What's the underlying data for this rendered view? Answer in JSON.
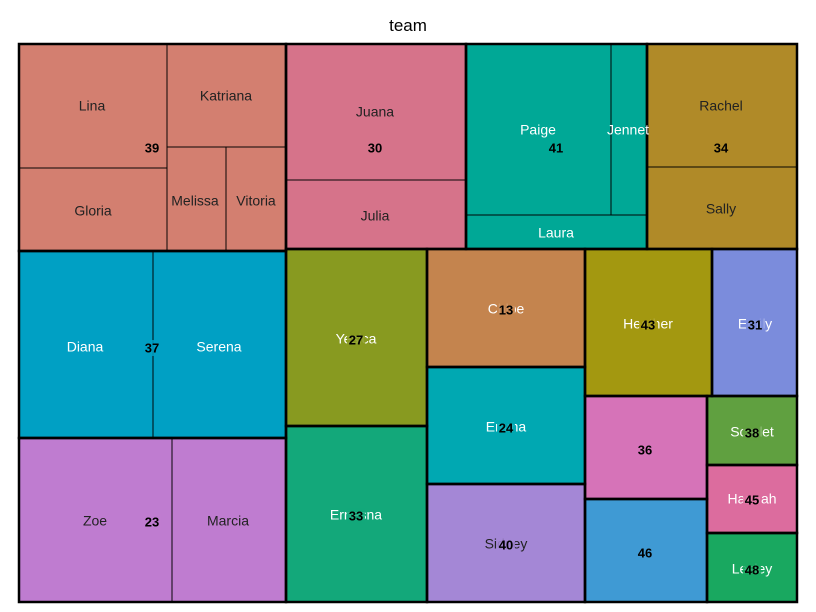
{
  "chart_data": {
    "type": "treemap",
    "title": "team",
    "groups": [
      {
        "label": "39",
        "color": "#D37F70",
        "members": [
          {
            "name": "Lina"
          },
          {
            "name": "Katriana"
          },
          {
            "name": "Gloria"
          },
          {
            "name": "Melissa"
          },
          {
            "name": "Vitoria"
          }
        ]
      },
      {
        "label": "30",
        "color": "#D6738A",
        "members": [
          {
            "name": "Juana"
          },
          {
            "name": "Julia"
          }
        ]
      },
      {
        "label": "41",
        "color": "#00A896",
        "members": [
          {
            "name": "Paige"
          },
          {
            "name": "Jennet"
          },
          {
            "name": "Laura"
          }
        ]
      },
      {
        "label": "34",
        "color": "#B08A28",
        "members": [
          {
            "name": "Rachel"
          },
          {
            "name": "Sally"
          }
        ]
      },
      {
        "label": "37",
        "color": "#00A0C4",
        "members": [
          {
            "name": "Diana"
          },
          {
            "name": "Serena"
          }
        ]
      },
      {
        "label": "27",
        "color": "#889A20",
        "members": [
          {
            "name": "Yesica"
          }
        ]
      },
      {
        "label": "13",
        "color": "#C4844E",
        "members": [
          {
            "name": "Chloe"
          }
        ]
      },
      {
        "label": "43",
        "color": "#A39810",
        "members": [
          {
            "name": "Heather"
          }
        ]
      },
      {
        "label": "31",
        "color": "#7B8CDC",
        "members": [
          {
            "name": "Emily"
          }
        ]
      },
      {
        "label": "24",
        "color": "#00A8B2",
        "members": [
          {
            "name": "Emma"
          }
        ]
      },
      {
        "label": "36",
        "color": "#D673B8",
        "members": []
      },
      {
        "label": "38",
        "color": "#60A040",
        "members": [
          {
            "name": "Scarlet"
          }
        ]
      },
      {
        "label": "23",
        "color": "#BF7CD0",
        "members": [
          {
            "name": "Zoe"
          },
          {
            "name": "Marcia"
          }
        ]
      },
      {
        "label": "33",
        "color": "#13A87A",
        "members": [
          {
            "name": "Ernesna"
          }
        ]
      },
      {
        "label": "40",
        "color": "#A487D6",
        "members": [
          {
            "name": "Sidney"
          }
        ]
      },
      {
        "label": "46",
        "color": "#3F9AD4",
        "members": []
      },
      {
        "label": "45",
        "color": "#DC6C9E",
        "members": [
          {
            "name": "Hannah"
          }
        ]
      },
      {
        "label": "48",
        "color": "#19A860",
        "members": [
          {
            "name": "Lesley"
          }
        ]
      }
    ]
  }
}
